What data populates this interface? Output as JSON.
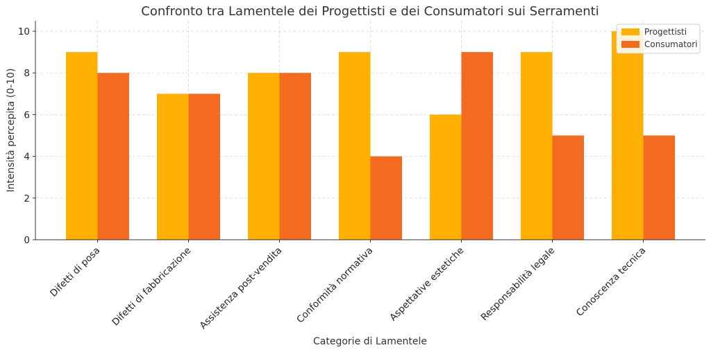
{
  "chart_data": {
    "type": "bar",
    "title": "Confronto tra Lamentele dei Progettisti e dei Consumatori sui Serramenti",
    "xlabel": "Categorie di Lamentele",
    "ylabel": "Intensità percepita (0-10)",
    "categories": [
      "Difetti di posa",
      "Difetti di fabbricazione",
      "Assistenza post-vendita",
      "Conformità normativa",
      "Aspettative estetiche",
      "Responsabilità legale",
      "Conoscenza tecnica"
    ],
    "series": [
      {
        "name": "Progettisti",
        "values": [
          9,
          7,
          8,
          9,
          6,
          9,
          10
        ],
        "color": "#FFB000"
      },
      {
        "name": "Consumatori",
        "values": [
          8,
          7,
          8,
          4,
          9,
          5,
          5
        ],
        "color": "#F26B21"
      }
    ],
    "ylim": [
      0,
      10.5
    ],
    "yticks": [
      0,
      2,
      4,
      6,
      8,
      10
    ],
    "grid": true,
    "legend_position": "top-right"
  }
}
